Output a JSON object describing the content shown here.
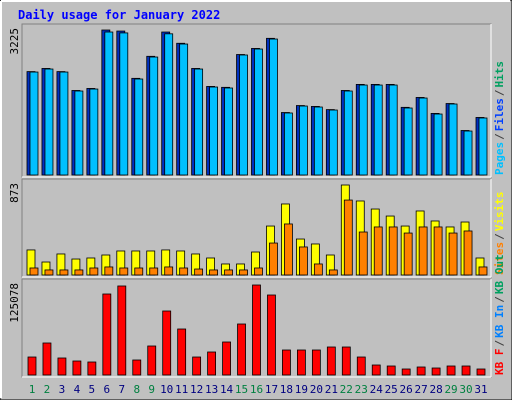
{
  "chart_data": {
    "type": "bar",
    "title": "Daily usage for January 2022",
    "categories": [
      "1",
      "2",
      "3",
      "4",
      "5",
      "6",
      "7",
      "8",
      "9",
      "10",
      "11",
      "12",
      "13",
      "14",
      "15",
      "16",
      "17",
      "18",
      "19",
      "20",
      "21",
      "22",
      "23",
      "24",
      "25",
      "26",
      "27",
      "28",
      "29",
      "30",
      "31"
    ],
    "category_colors": [
      "#008040",
      "#008040",
      "#000080",
      "#000080",
      "#000080",
      "#000080",
      "#000080",
      "#008040",
      "#008040",
      "#000080",
      "#000080",
      "#000080",
      "#000080",
      "#000080",
      "#008040",
      "#008040",
      "#000080",
      "#000080",
      "#000080",
      "#000080",
      "#000080",
      "#008040",
      "#008040",
      "#000080",
      "#000080",
      "#000080",
      "#000080",
      "#000080",
      "#008040",
      "#008040",
      "#000080"
    ],
    "legend_separator": "/",
    "panels": [
      {
        "ylim": [
          0,
          3225
        ],
        "yticks": [
          3225
        ],
        "legend": [
          {
            "name": "Pages",
            "color": "#00c0ff"
          },
          {
            "name": "Files",
            "color": "#0040ff"
          },
          {
            "name": "Hits",
            "color": "#00a060"
          }
        ],
        "series": [
          {
            "name": "Files",
            "color": "#0030c0",
            "values": [
              2300,
              2370,
              2300,
              1880,
              1925,
              3225,
              3202,
              2150,
              2640,
              3180,
              2930,
              2370,
              1970,
              1950,
              2680,
              2815,
              3040,
              1390,
              1545,
              1525,
              1455,
              1880,
              2015,
              2015,
              2015,
              1505,
              1725,
              1370,
              1590,
              990,
              1280
            ]
          },
          {
            "name": "Pages",
            "color": "#00c0ff",
            "values": [
              2290,
              2357,
              2290,
              1868,
              1912,
              3180,
              3160,
              2135,
              2624,
              3140,
              2913,
              2357,
              1957,
              1935,
              2669,
              2802,
              3024,
              1379,
              1534,
              1512,
              1445,
              1868,
              2001,
              2001,
              2001,
              1490,
              1712,
              1356,
              1579,
              978,
              1268
            ]
          }
        ]
      },
      {
        "ylim": [
          0,
          873
        ],
        "yticks": [
          873
        ],
        "legend": [
          {
            "name": "Sites",
            "color": "#ff8000"
          },
          {
            "name": "Visits",
            "color": "#ffff00"
          }
        ],
        "series": [
          {
            "name": "Visits",
            "color": "#ffff00",
            "values": [
              243,
              126,
              204,
              155,
              165,
              194,
              233,
              233,
              233,
              243,
              233,
              204,
              165,
              107,
              107,
              223,
              475,
              689,
              349,
              301,
              194,
              873,
              718,
              640,
              572,
              475,
              621,
              524,
              466,
              514,
              165
            ]
          },
          {
            "name": "Sites",
            "color": "#ff8000",
            "values": [
              68,
              49,
              49,
              49,
              68,
              78,
              68,
              68,
              68,
              78,
              68,
              58,
              49,
              49,
              49,
              68,
              310,
              495,
              272,
              107,
              49,
              727,
              417,
              466,
              466,
              407,
              466,
              466,
              407,
              427,
              78
            ]
          }
        ]
      },
      {
        "ylim": [
          0,
          125078
        ],
        "yticks": [
          125078
        ],
        "legend": [
          {
            "name": "KB F",
            "color": "#ff0000"
          },
          {
            "name": "KB In",
            "color": "#0080ff"
          },
          {
            "name": "KB Out",
            "color": "#00a060"
          }
        ],
        "series": [
          {
            "name": "KB In",
            "color": "#ff0000",
            "values": [
              25000,
              44475,
              23627,
              19457,
              18067,
              112570,
              123700,
              20847,
              40303,
              88944,
              63928,
              25000,
              31964,
              45861,
              70877,
              125078,
              111180,
              34744,
              34744,
              34744,
              38912,
              38912,
              25000,
              13898,
              12508,
              8338,
              11118,
              9728,
              12508,
              12508,
              8338
            ]
          }
        ]
      }
    ]
  }
}
